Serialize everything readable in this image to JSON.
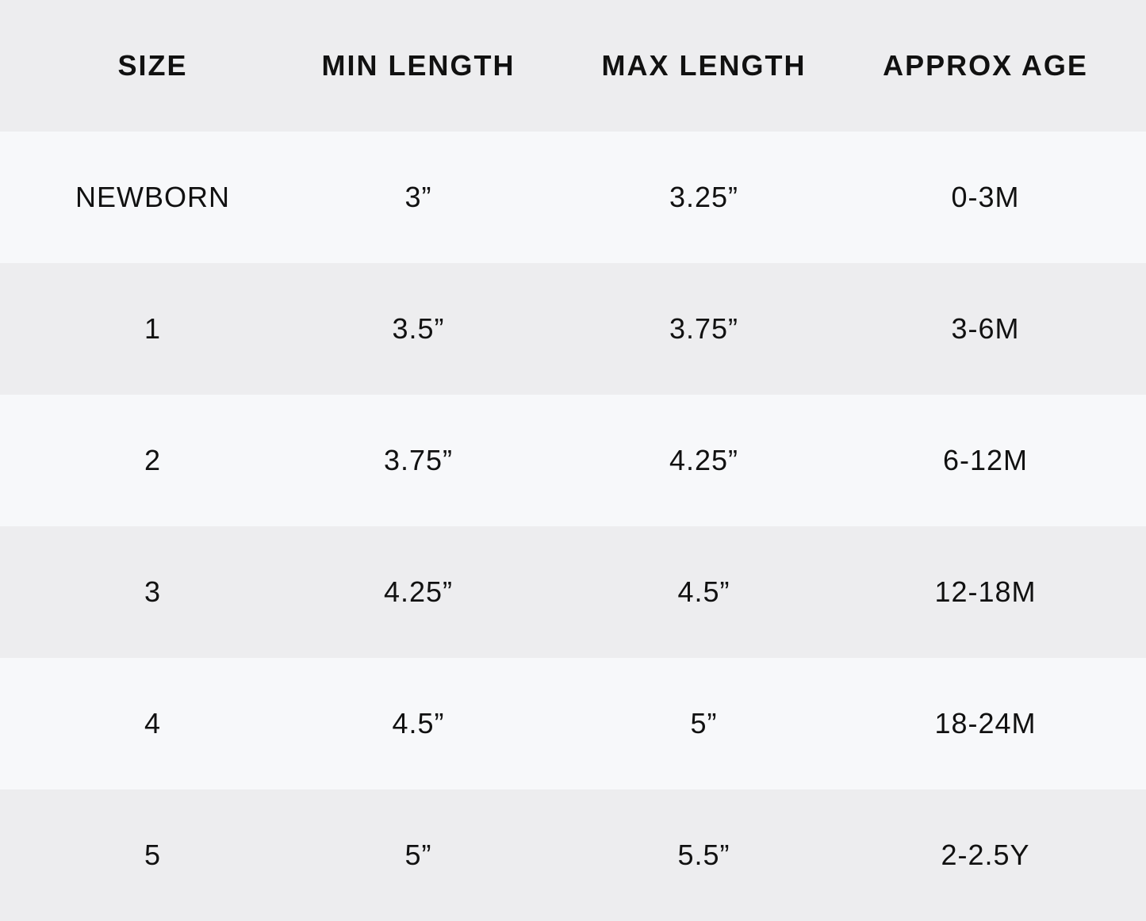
{
  "headers": [
    "SIZE",
    "MIN LENGTH",
    "MAX LENGTH",
    "APPROX AGE"
  ],
  "rows": [
    [
      "NEWBORN",
      "3”",
      "3.25”",
      "0-3M"
    ],
    [
      "1",
      "3.5”",
      "3.75”",
      "3-6M"
    ],
    [
      "2",
      "3.75”",
      "4.25”",
      "6-12M"
    ],
    [
      "3",
      "4.25”",
      "4.5”",
      "12-18M"
    ],
    [
      "4",
      "4.5”",
      "5”",
      "18-24M"
    ],
    [
      "5",
      "5”",
      "5.5”",
      "2-2.5Y"
    ]
  ]
}
